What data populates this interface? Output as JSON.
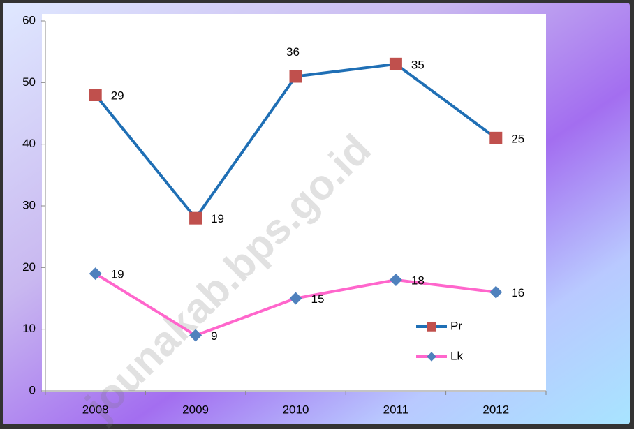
{
  "chart_data": {
    "type": "line",
    "stacked": true,
    "categories": [
      "2008",
      "2009",
      "2010",
      "2011",
      "2012"
    ],
    "series": [
      {
        "name": "Lk",
        "color": "#ff66cc",
        "marker_color": "#4f81bd",
        "marker": "diamond",
        "values": [
          19,
          9,
          15,
          18,
          16
        ]
      },
      {
        "name": "Pr",
        "color": "#1f6fb5",
        "marker_color": "#c0504d",
        "marker": "square",
        "values": [
          29,
          19,
          36,
          35,
          25
        ]
      }
    ],
    "legend_order": [
      1,
      0
    ],
    "ylim": [
      0,
      60
    ],
    "yticks": [
      0,
      10,
      20,
      30,
      40,
      50,
      60
    ],
    "watermark": "jounakab.bps.go.id"
  }
}
